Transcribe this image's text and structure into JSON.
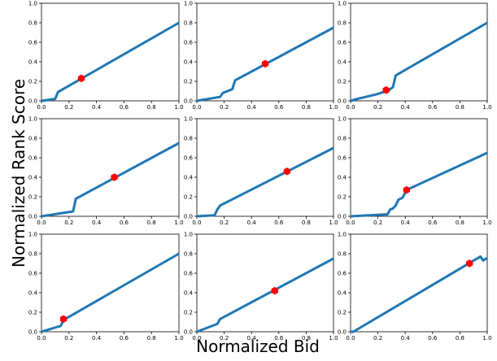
{
  "figure": {
    "xlabel": "Normalized Bid",
    "ylabel": "Normalized Rank Score"
  },
  "style": {
    "line_color": "#1f77b4",
    "marker_color": "#ff0000",
    "axes_color": "#000000",
    "background": "#ffffff"
  },
  "chart_data": [
    {
      "type": "line",
      "xlim": [
        0,
        1
      ],
      "ylim": [
        0,
        1
      ],
      "xticks": [
        "0.0",
        "0.2",
        "0.4",
        "0.6",
        "0.8",
        "1.0"
      ],
      "yticks": [
        "0.0",
        "0.2",
        "0.4",
        "0.6",
        "0.8",
        "1.0"
      ],
      "grid": false,
      "series": [
        {
          "x": [
            0,
            0.1,
            0.12,
            1.0
          ],
          "y": [
            0,
            0.02,
            0.09,
            0.8
          ]
        }
      ],
      "marker": {
        "x": 0.29,
        "y": 0.23
      }
    },
    {
      "type": "line",
      "xlim": [
        0,
        1
      ],
      "ylim": [
        0,
        1
      ],
      "xticks": [
        "0.0",
        "0.2",
        "0.4",
        "0.6",
        "0.8",
        "1.0"
      ],
      "yticks": [
        "0.0",
        "0.2",
        "0.4",
        "0.6",
        "0.8",
        "1.0"
      ],
      "grid": false,
      "series": [
        {
          "x": [
            0,
            0.17,
            0.19,
            0.26,
            0.28,
            1.0
          ],
          "y": [
            0,
            0.04,
            0.08,
            0.12,
            0.21,
            0.75
          ]
        }
      ],
      "marker": {
        "x": 0.5,
        "y": 0.38
      }
    },
    {
      "type": "line",
      "xlim": [
        0,
        1
      ],
      "ylim": [
        0,
        1
      ],
      "xticks": [
        "0.0",
        "0.2",
        "0.4",
        "0.6",
        "0.8",
        "1.0"
      ],
      "yticks": [
        "0.0",
        "0.2",
        "0.4",
        "0.6",
        "0.8",
        "1.0"
      ],
      "grid": false,
      "series": [
        {
          "x": [
            0,
            0.05,
            0.08,
            0.2,
            0.28,
            0.31,
            0.33,
            1.0
          ],
          "y": [
            0,
            0.02,
            0.03,
            0.07,
            0.11,
            0.14,
            0.26,
            0.8
          ]
        }
      ],
      "marker": {
        "x": 0.26,
        "y": 0.11
      }
    },
    {
      "type": "line",
      "xlim": [
        0,
        1
      ],
      "ylim": [
        0,
        1
      ],
      "xticks": [
        "0.0",
        "0.2",
        "0.4",
        "0.6",
        "0.8",
        "1.0"
      ],
      "yticks": [
        "0.0",
        "0.2",
        "0.4",
        "0.6",
        "0.8",
        "1.0"
      ],
      "grid": false,
      "series": [
        {
          "x": [
            0,
            0.23,
            0.25,
            1.0
          ],
          "y": [
            0,
            0.05,
            0.18,
            0.75
          ]
        }
      ],
      "marker": {
        "x": 0.53,
        "y": 0.4
      }
    },
    {
      "type": "line",
      "xlim": [
        0,
        1
      ],
      "ylim": [
        0,
        1
      ],
      "xticks": [
        "0.0",
        "0.2",
        "0.4",
        "0.6",
        "0.8",
        "1.0"
      ],
      "yticks": [
        "0.0",
        "0.2",
        "0.4",
        "0.6",
        "0.8",
        "1.0"
      ],
      "grid": false,
      "series": [
        {
          "x": [
            0,
            0.13,
            0.15,
            0.17,
            1.0
          ],
          "y": [
            0,
            0.01,
            0.07,
            0.11,
            0.7
          ]
        }
      ],
      "marker": {
        "x": 0.66,
        "y": 0.46
      }
    },
    {
      "type": "line",
      "xlim": [
        0,
        1
      ],
      "ylim": [
        0,
        1
      ],
      "xticks": [
        "0.0",
        "0.2",
        "0.4",
        "0.6",
        "0.8",
        "1.0"
      ],
      "yticks": [
        "0.0",
        "0.2",
        "0.4",
        "0.6",
        "0.8",
        "1.0"
      ],
      "grid": false,
      "series": [
        {
          "x": [
            0,
            0.27,
            0.29,
            0.31,
            0.33,
            0.35,
            0.38,
            0.41,
            1.0
          ],
          "y": [
            0,
            0.02,
            0.07,
            0.08,
            0.11,
            0.17,
            0.19,
            0.27,
            0.65
          ]
        }
      ],
      "marker": {
        "x": 0.41,
        "y": 0.27
      }
    },
    {
      "type": "line",
      "xlim": [
        0,
        1
      ],
      "ylim": [
        0,
        1
      ],
      "xticks": [
        "0.0",
        "0.2",
        "0.4",
        "0.6",
        "0.8",
        "1.0"
      ],
      "yticks": [
        "0.0",
        "0.2",
        "0.4",
        "0.6",
        "0.8",
        "1.0"
      ],
      "grid": false,
      "series": [
        {
          "x": [
            0,
            0.14,
            0.16,
            1.0
          ],
          "y": [
            0,
            0.06,
            0.12,
            0.8
          ]
        }
      ],
      "marker": {
        "x": 0.16,
        "y": 0.13
      }
    },
    {
      "type": "line",
      "xlim": [
        0,
        1
      ],
      "ylim": [
        0,
        1
      ],
      "xticks": [
        "0.0",
        "0.2",
        "0.4",
        "0.6",
        "0.8",
        "1.0"
      ],
      "yticks": [
        "0.0",
        "0.2",
        "0.4",
        "0.6",
        "0.8",
        "1.0"
      ],
      "grid": false,
      "series": [
        {
          "x": [
            0,
            0.15,
            0.17,
            1.0
          ],
          "y": [
            0,
            0.08,
            0.13,
            0.75
          ]
        }
      ],
      "marker": {
        "x": 0.57,
        "y": 0.42
      }
    },
    {
      "type": "line",
      "xlim": [
        0,
        1
      ],
      "ylim": [
        0,
        1
      ],
      "xticks": [
        "0.0",
        "0.2",
        "0.4",
        "0.6",
        "0.8",
        "1.0"
      ],
      "yticks": [
        "0.0",
        "0.2",
        "0.4",
        "0.6",
        "0.8",
        "1.0"
      ],
      "grid": false,
      "series": [
        {
          "x": [
            0,
            0.02,
            0.95,
            0.97,
            0.99,
            1.0
          ],
          "y": [
            0,
            0.0,
            0.77,
            0.73,
            0.75,
            0.75
          ]
        }
      ],
      "marker": {
        "x": 0.87,
        "y": 0.7
      }
    }
  ]
}
